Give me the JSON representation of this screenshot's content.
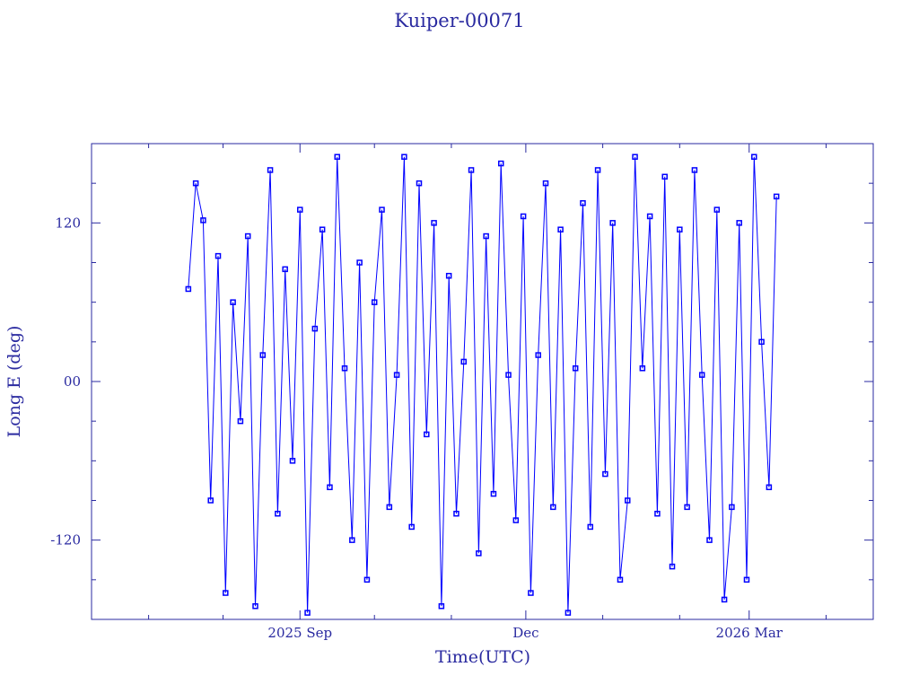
{
  "chart_data": {
    "type": "line",
    "title": "Kuiper-00071",
    "x_label": "Time(UTC)",
    "y_label": "Long E (deg)",
    "x": [
      -45,
      -42,
      -39,
      -36,
      -33,
      -30,
      -27,
      -24,
      -21,
      -18,
      -15,
      -12,
      -9,
      -6,
      -3,
      0,
      3,
      6,
      9,
      12,
      15,
      18,
      21,
      24,
      27,
      30,
      33,
      36,
      39,
      42,
      45,
      48,
      51,
      54,
      57,
      60,
      63,
      66,
      69,
      72,
      75,
      78,
      81,
      84,
      87,
      90,
      93,
      96,
      99,
      102,
      105,
      108,
      111,
      114,
      117,
      120,
      123,
      126,
      129,
      132,
      135,
      138,
      141,
      144,
      147,
      150,
      153,
      156,
      159,
      162,
      165,
      168,
      171,
      174,
      177,
      180,
      183,
      186,
      189,
      192
    ],
    "series": [
      {
        "name": "Kuiper-00071",
        "color": "#0000ff",
        "values": [
          70,
          150,
          122,
          -90,
          95,
          -160,
          60,
          -30,
          110,
          -170,
          20,
          160,
          -100,
          85,
          -60,
          130,
          -175,
          40,
          115,
          -80,
          170,
          10,
          -120,
          90,
          -150,
          60,
          130,
          -95,
          5,
          170,
          -110,
          150,
          -40,
          120,
          -170,
          80,
          -100,
          15,
          160,
          -130,
          110,
          -85,
          165,
          5,
          -105,
          125,
          -160,
          20,
          150,
          -95,
          115,
          -175,
          10,
          135,
          -110,
          160,
          -70,
          120,
          -150,
          -90,
          170,
          10,
          125,
          -100,
          155,
          -140,
          115,
          -95,
          160,
          5,
          -120,
          130,
          -165,
          -95,
          120,
          -150,
          170,
          30,
          -80,
          140
        ]
      }
    ],
    "xlim": [
      -84,
      231
    ],
    "xticks": [
      {
        "value": 0,
        "label": "2025 Sep"
      },
      {
        "value": 91,
        "label": "Dec"
      },
      {
        "value": 181,
        "label": "2026 Mar"
      }
    ],
    "xminorticks": [
      -61,
      -31,
      30,
      61,
      122,
      153,
      212
    ],
    "ylim": [
      -180,
      180
    ],
    "yticks": [
      -120,
      {
        "value": 0,
        "label": "00"
      },
      120
    ],
    "yminorticks": [
      -150,
      -90,
      -60,
      -30,
      30,
      60,
      90,
      150
    ],
    "markers": true,
    "grid": false
  }
}
